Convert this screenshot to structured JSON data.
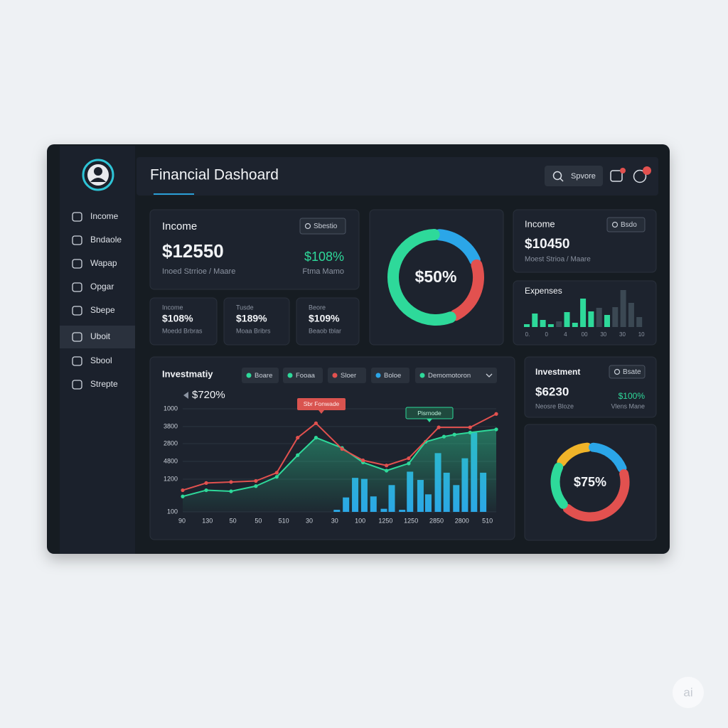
{
  "sidebar": {
    "nav": [
      "Income",
      "Bndaole",
      "Wapap",
      "Opgar",
      "Sbepe",
      "Uboit",
      "Sbool",
      "Strepte"
    ],
    "active": 5
  },
  "header": {
    "title": "Financial Dashoard",
    "search": "Spvore"
  },
  "income_card": {
    "title": "Income",
    "button": "Sbestio",
    "value": "$12550",
    "subtitle": "Inoed Strrioe / Maare",
    "change": "$108%",
    "change_label": "Ftma Mamo"
  },
  "mini_cards": [
    {
      "label": "Income",
      "value": "$108%",
      "subtitle": "Moedd Brbras"
    },
    {
      "label": "Tusde",
      "value": "$189%",
      "subtitle": "Moaa Bribrs"
    },
    {
      "label": "Beore",
      "value": "$109%",
      "subtitle": "Beaob tblar"
    }
  ],
  "balance_donut": {
    "type": "pie",
    "label": "$50%",
    "values": [
      17,
      22,
      55
    ],
    "colors": [
      "#2ba6e8",
      "#e2514f",
      "#2ed99a"
    ]
  },
  "income_summary": {
    "title": "Income",
    "button": "Bsdo",
    "value": "$10450",
    "subtitle": "Moest Strioa / Maare"
  },
  "expenses": {
    "type": "bar",
    "title": "Expenses",
    "values": [
      4,
      19,
      10,
      4,
      8,
      21,
      6,
      40,
      22,
      27,
      17,
      28,
      52,
      34,
      14
    ],
    "colors": [
      "#2ed99a",
      "#2ed99a",
      "#2ed99a",
      "#2ed99a",
      "#3b4853",
      "#2ed99a",
      "#2ed99a",
      "#2ed99a",
      "#2ed99a",
      "#3b4853",
      "#2ed99a",
      "#3b4853",
      "#3b4853",
      "#3b4853",
      "#3b4853"
    ],
    "ylim": [
      0,
      60
    ],
    "x_labels": [
      "0.",
      "0",
      "4",
      "00",
      "30",
      "30",
      "10"
    ]
  },
  "investment_chart": {
    "title": "Investmatiy",
    "legend": [
      {
        "label": "Boare",
        "color": "#2ed99a"
      },
      {
        "label": "Fooaa",
        "color": "#2ed99a"
      },
      {
        "label": "Sloer",
        "color": "#e2514f"
      },
      {
        "label": "Boloe",
        "color": "#2ba6e8"
      },
      {
        "label": "Demomotoron",
        "color": "#2ed99a"
      }
    ],
    "highlight": "$720%",
    "y_labels": [
      "1000",
      "3800",
      "2800",
      "4800",
      "1200",
      "100"
    ],
    "x_labels": [
      "90",
      "130",
      "50",
      "50",
      "510",
      "30",
      "30",
      "100",
      "1250",
      "1250",
      "2850",
      "2800",
      "510"
    ],
    "annotations": [
      "Sbr Fonwade",
      "Pisrnode"
    ],
    "xlim": [
      0,
      12
    ],
    "ylim": [
      0,
      100
    ],
    "series": [
      {
        "type": "bar",
        "color": "#2ba6e8",
        "x": [
          5.9,
          6.25,
          6.6,
          6.95,
          7.3,
          7.7,
          8.0,
          8.4,
          8.7,
          9.1,
          9.4,
          9.77,
          10.1,
          10.47,
          10.8,
          11.15,
          11.5
        ],
        "values": [
          2,
          14,
          33,
          32,
          15,
          3,
          26,
          2,
          39,
          31,
          17,
          57,
          38,
          26,
          52,
          77,
          38
        ]
      },
      {
        "type": "area",
        "color": "#2ed99a",
        "x": [
          0,
          0.9,
          1.85,
          2.8,
          3.6,
          4.4,
          5.1,
          6.1,
          6.9,
          7.8,
          8.65,
          9.3,
          10,
          10.4,
          11,
          12
        ],
        "values": [
          15,
          21,
          20,
          25,
          34,
          55,
          72,
          62,
          48,
          40,
          47,
          68,
          73,
          75,
          77,
          80
        ]
      },
      {
        "type": "line",
        "color": "#e2514f",
        "x": [
          0,
          0.9,
          1.85,
          2.8,
          3.6,
          4.4,
          5.1,
          6.1,
          6.9,
          7.8,
          8.65,
          9.8,
          11,
          12
        ],
        "values": [
          21,
          28,
          29,
          30,
          38,
          72,
          86,
          61,
          50,
          45,
          52,
          82,
          82,
          95
        ]
      }
    ]
  },
  "investment_card": {
    "title": "Investment",
    "button": "Bsate",
    "value": "$6230",
    "subtitle": "Neosre Bloze",
    "change": "$100%",
    "change_label": "Vlens Mane"
  },
  "allocation_donut": {
    "type": "pie",
    "label": "$75%",
    "values": [
      14,
      17,
      40,
      18
    ],
    "colors": [
      "#f0b429",
      "#2ba6e8",
      "#e2514f",
      "#2ed99a"
    ]
  },
  "watermark": "ai"
}
